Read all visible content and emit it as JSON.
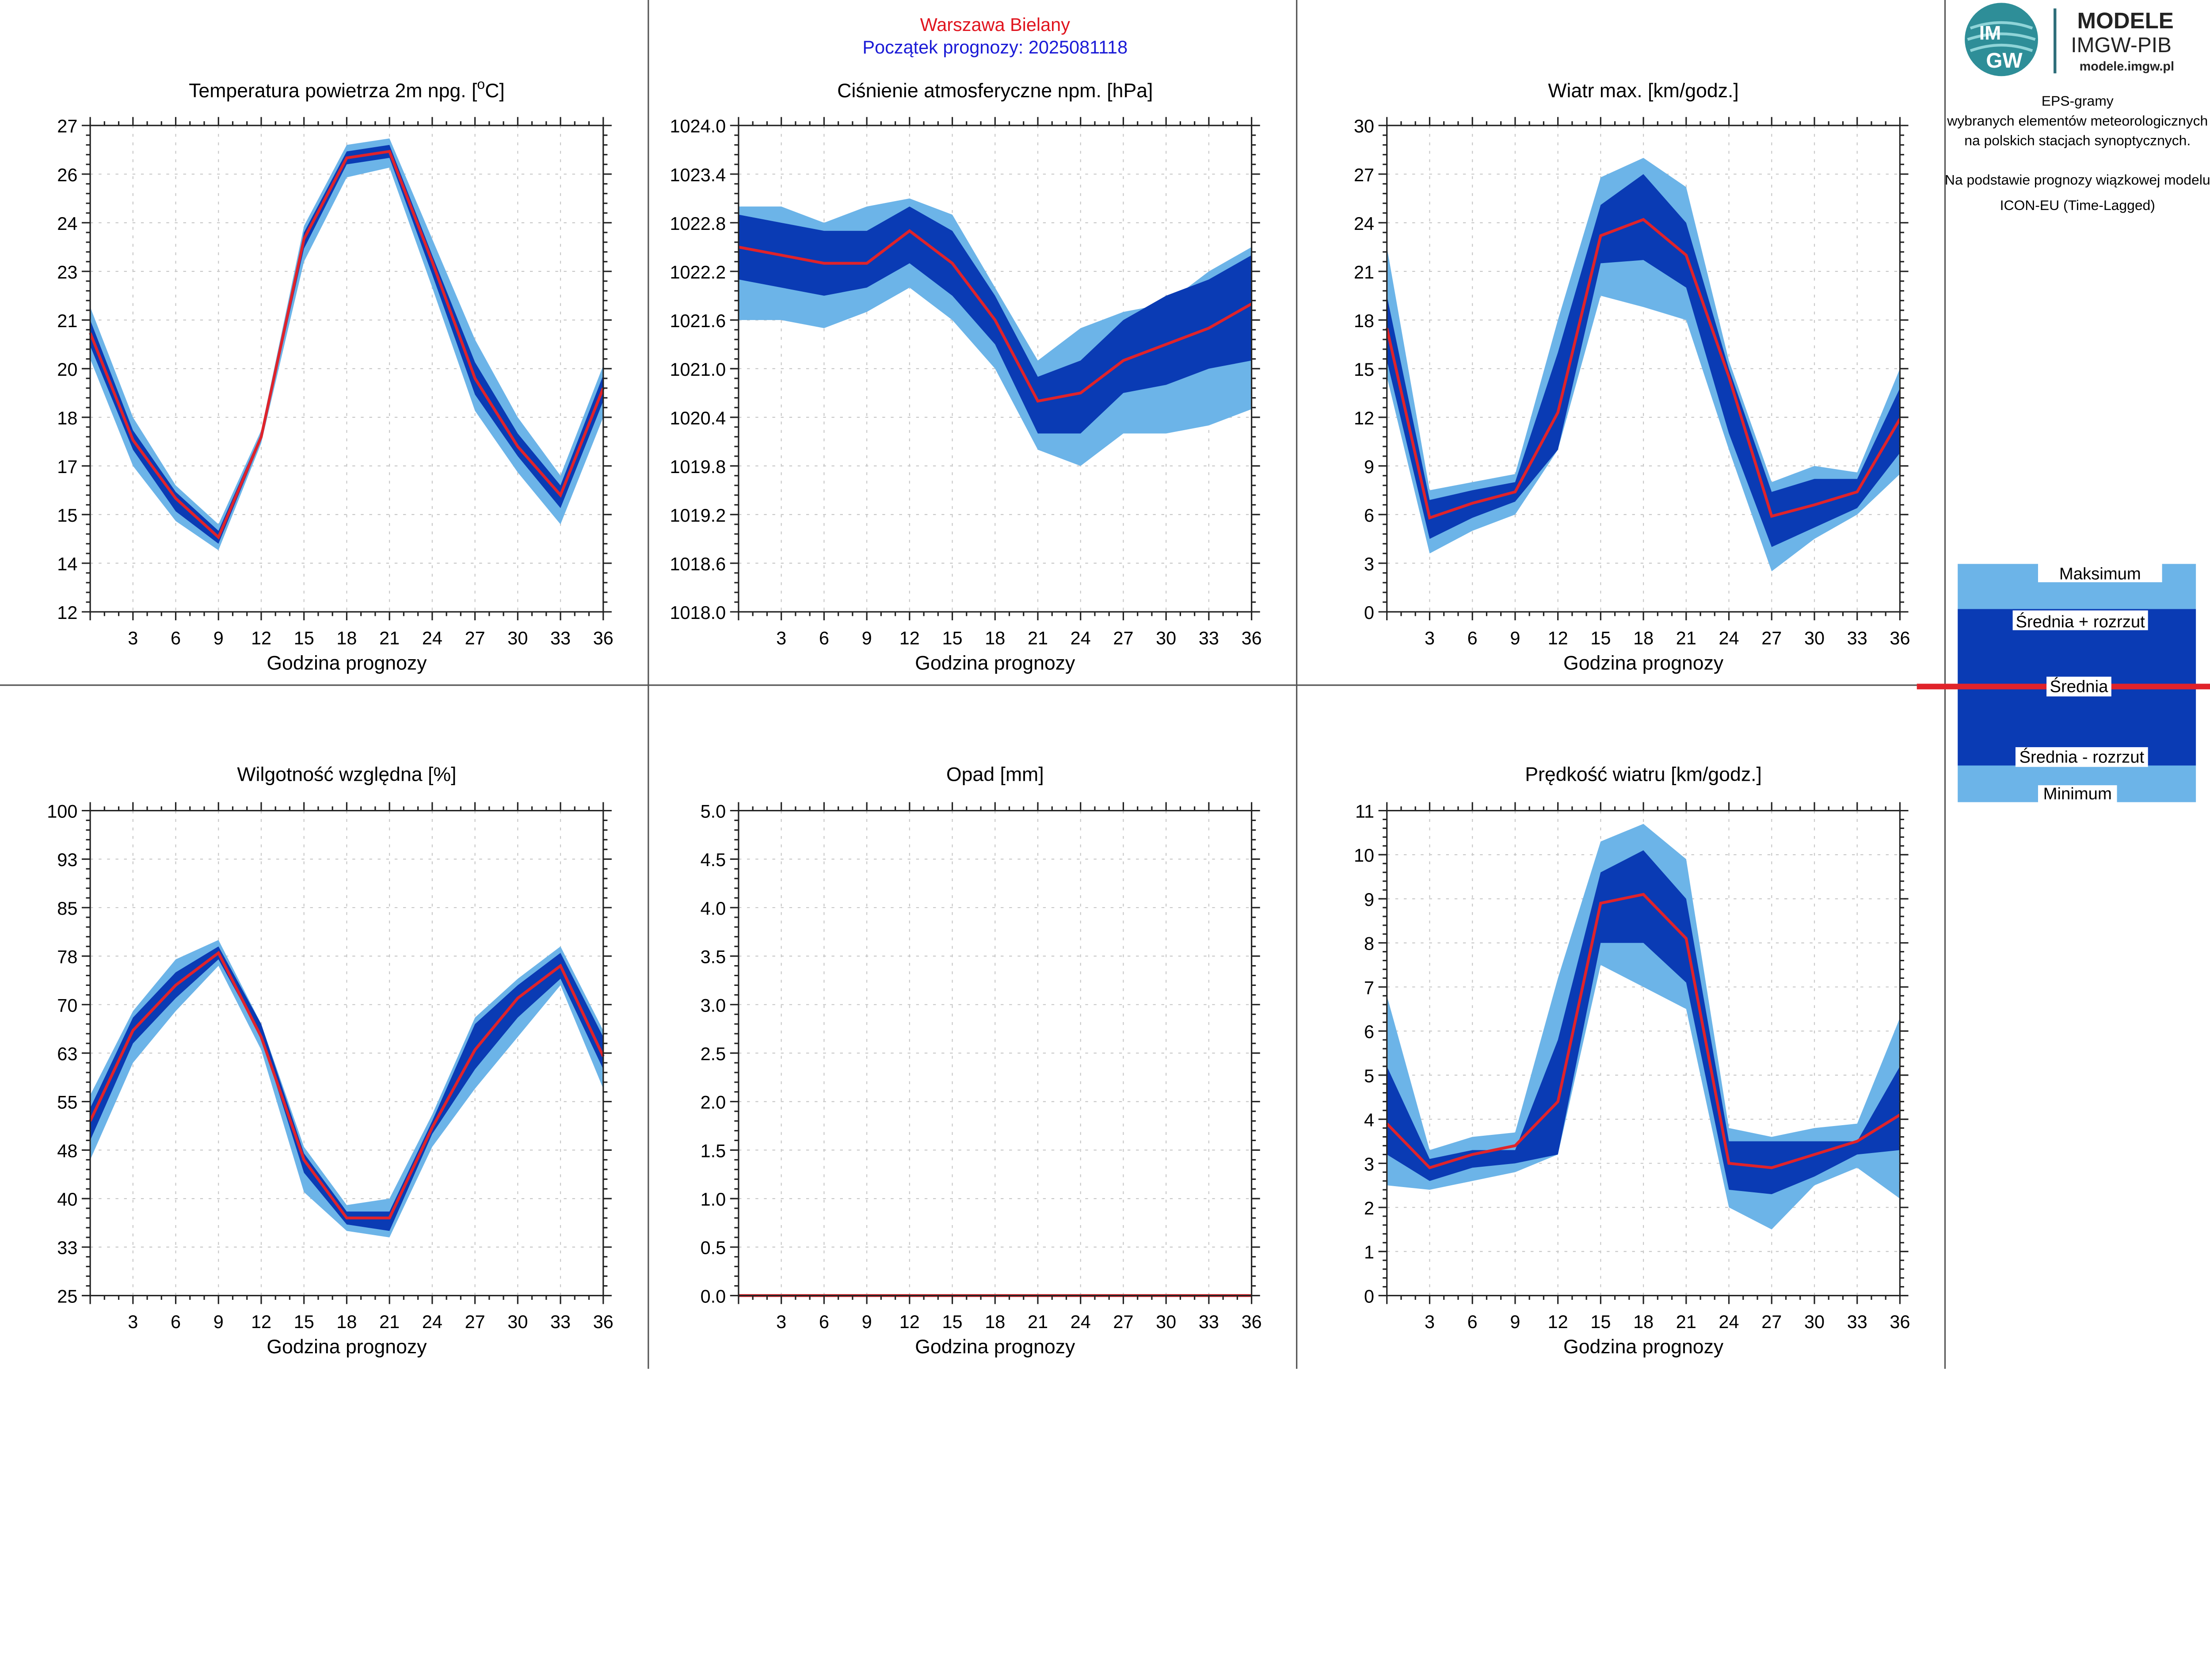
{
  "header": {
    "station": "Warszawa Bielany",
    "station_color": "#e0141e",
    "forecast_start": "Początek prognozy: 2025081118",
    "forecast_start_color": "#1a1ad6"
  },
  "logo": {
    "brand_title": "MODELE",
    "brand_subtitle": "IMGW-PIB",
    "brand_url": "modele.imgw.pl",
    "mark_text_top": "IM",
    "mark_text_bottom": "GW"
  },
  "info": {
    "line1": "EPS-gramy",
    "line2": "wybranych elementów meteorologicznych",
    "line3": "na polskich stacjach  synoptycznych.",
    "line4": "Na podstawie prognozy wiązkowej modelu",
    "line5": "ICON-EU (Time-Lagged)"
  },
  "legend": {
    "max": "Maksimum",
    "mean_plus": "Średnia + rozrzut",
    "mean": "Średnia",
    "mean_minus": "Średnia - rozrzut",
    "min": "Minimum"
  },
  "colors": {
    "minmax_band": "#6cb4e8",
    "spread_band": "#0a3bb4",
    "mean_line": "#e0232a",
    "grid": "#c8c8c8",
    "divider": "#555555"
  },
  "chart_data": [
    {
      "id": "temperature",
      "type": "area",
      "title_main": "Temperatura powietrza 2m npg. [",
      "title_sup": "o",
      "title_end": "C]",
      "xlabel": "Godzina prognozy",
      "x": [
        0,
        3,
        6,
        9,
        12,
        15,
        18,
        21,
        24,
        27,
        30,
        33,
        36
      ],
      "x_ticks": [
        "3",
        "6",
        "9",
        "12",
        "15",
        "18",
        "21",
        "24",
        "27",
        "30",
        "33",
        "36"
      ],
      "ylim": [
        12,
        27
      ],
      "y_ticks": [
        "12",
        "14",
        "15",
        "17",
        "18",
        "20",
        "21",
        "23",
        "24",
        "26",
        "27"
      ],
      "grid": true,
      "series": [
        {
          "name": "Minimum",
          "values": [
            19.8,
            16.5,
            14.8,
            13.9,
            17.2,
            22.8,
            25.4,
            25.7,
            22.0,
            18.2,
            16.3,
            14.7,
            18.0
          ]
        },
        {
          "name": "Średnia - rozrzut",
          "values": [
            20.2,
            17.0,
            15.1,
            14.1,
            17.3,
            23.2,
            25.8,
            26.0,
            22.4,
            18.7,
            16.8,
            15.2,
            18.5
          ]
        },
        {
          "name": "Średnia",
          "values": [
            20.6,
            17.3,
            15.5,
            14.3,
            17.4,
            23.5,
            26.0,
            26.2,
            22.8,
            19.2,
            17.1,
            15.6,
            18.9
          ]
        },
        {
          "name": "Średnia + rozrzut",
          "values": [
            21.0,
            17.6,
            15.7,
            14.5,
            17.5,
            23.7,
            26.2,
            26.4,
            23.0,
            19.7,
            17.5,
            15.9,
            19.3
          ]
        },
        {
          "name": "Maksimum",
          "values": [
            21.4,
            18.0,
            15.9,
            14.7,
            17.6,
            23.9,
            26.4,
            26.6,
            23.5,
            20.4,
            18.0,
            16.2,
            19.6
          ]
        }
      ]
    },
    {
      "id": "pressure",
      "type": "area",
      "title": "Ciśnienie atmosferyczne npm. [hPa]",
      "xlabel": "Godzina prognozy",
      "x": [
        0,
        3,
        6,
        9,
        12,
        15,
        18,
        21,
        24,
        27,
        30,
        33,
        36
      ],
      "x_ticks": [
        "3",
        "6",
        "9",
        "12",
        "15",
        "18",
        "21",
        "24",
        "27",
        "30",
        "33",
        "36"
      ],
      "ylim": [
        1018.0,
        1024.0
      ],
      "y_ticks": [
        "1018.0",
        "1018.6",
        "1019.2",
        "1019.8",
        "1020.4",
        "1021.0",
        "1021.6",
        "1022.2",
        "1022.8",
        "1023.4",
        "1024.0"
      ],
      "grid": true,
      "series": [
        {
          "name": "Minimum",
          "values": [
            1021.6,
            1021.6,
            1021.5,
            1021.7,
            1022.0,
            1021.6,
            1021.0,
            1020.0,
            1019.8,
            1020.2,
            1020.2,
            1020.3,
            1020.5
          ]
        },
        {
          "name": "Średnia - rozrzut",
          "values": [
            1022.1,
            1022.0,
            1021.9,
            1022.0,
            1022.3,
            1021.9,
            1021.3,
            1020.2,
            1020.2,
            1020.7,
            1020.8,
            1021.0,
            1021.1
          ]
        },
        {
          "name": "Średnia",
          "values": [
            1022.5,
            1022.4,
            1022.3,
            1022.3,
            1022.7,
            1022.3,
            1021.6,
            1020.6,
            1020.7,
            1021.1,
            1021.3,
            1021.5,
            1021.8
          ]
        },
        {
          "name": "Średnia + rozrzut",
          "values": [
            1022.9,
            1022.8,
            1022.7,
            1022.7,
            1023.0,
            1022.7,
            1021.9,
            1020.9,
            1021.1,
            1021.6,
            1021.9,
            1022.1,
            1022.4
          ]
        },
        {
          "name": "Maksimum",
          "values": [
            1023.0,
            1023.0,
            1022.8,
            1023.0,
            1023.1,
            1022.9,
            1022.0,
            1021.1,
            1021.5,
            1021.7,
            1021.8,
            1022.2,
            1022.5
          ]
        }
      ]
    },
    {
      "id": "wind_max",
      "type": "area",
      "title": "Wiatr max. [km/godz.]",
      "xlabel": "Godzina prognozy",
      "x": [
        0,
        3,
        6,
        9,
        12,
        15,
        18,
        21,
        24,
        27,
        30,
        33,
        36
      ],
      "x_ticks": [
        "3",
        "6",
        "9",
        "12",
        "15",
        "18",
        "21",
        "24",
        "27",
        "30",
        "33",
        "36"
      ],
      "ylim": [
        0,
        30
      ],
      "y_ticks": [
        "0",
        "3",
        "6",
        "9",
        "12",
        "15",
        "18",
        "21",
        "24",
        "27",
        "30"
      ],
      "grid": true,
      "series": [
        {
          "name": "Minimum",
          "values": [
            14.5,
            3.6,
            5.0,
            6.0,
            10.0,
            19.5,
            18.8,
            18.0,
            10.0,
            2.5,
            4.5,
            6.0,
            8.5
          ]
        },
        {
          "name": "Średnia - rozrzut",
          "values": [
            15.5,
            4.5,
            5.8,
            6.8,
            10.0,
            21.5,
            21.7,
            20.0,
            11.0,
            4.0,
            5.2,
            6.4,
            9.8
          ]
        },
        {
          "name": "Średnia",
          "values": [
            17.5,
            5.8,
            6.7,
            7.4,
            12.3,
            23.2,
            24.2,
            22.0,
            14.5,
            5.9,
            6.6,
            7.4,
            11.9
          ]
        },
        {
          "name": "Średnia + rozrzut",
          "values": [
            19.5,
            6.9,
            7.5,
            8.0,
            16.0,
            25.1,
            27.0,
            24.0,
            15.0,
            7.4,
            8.2,
            8.2,
            13.8
          ]
        },
        {
          "name": "Maksimum",
          "values": [
            22.5,
            7.5,
            8.0,
            8.5,
            18.0,
            26.8,
            28.0,
            26.2,
            15.5,
            8.0,
            9.0,
            8.6,
            15.0
          ]
        }
      ]
    },
    {
      "id": "humidity",
      "type": "area",
      "title": "Wilgotność względna [%]",
      "xlabel": "Godzina prognozy",
      "x": [
        0,
        3,
        6,
        9,
        12,
        15,
        18,
        21,
        24,
        27,
        30,
        33,
        36
      ],
      "x_ticks": [
        "3",
        "6",
        "9",
        "12",
        "15",
        "18",
        "21",
        "24",
        "27",
        "30",
        "33",
        "36"
      ],
      "ylim": [
        25,
        100
      ],
      "y_ticks": [
        "25",
        "33",
        "40",
        "48",
        "55",
        "63",
        "70",
        "78",
        "85",
        "93",
        "100"
      ],
      "grid": true,
      "series": [
        {
          "name": "Minimum",
          "values": [
            46,
            61,
            69,
            76,
            63,
            41,
            35,
            34,
            48,
            57,
            65,
            73,
            57
          ]
        },
        {
          "name": "Średnia - rozrzut",
          "values": [
            49,
            64,
            71,
            77,
            65,
            44,
            36,
            35,
            50,
            60,
            68,
            74,
            60
          ]
        },
        {
          "name": "Średnia",
          "values": [
            52,
            66,
            73,
            78,
            65,
            46,
            37,
            37,
            51,
            63,
            71,
            76,
            62
          ]
        },
        {
          "name": "Średnia + rozrzut",
          "values": [
            54,
            68,
            75,
            79,
            67,
            47,
            38,
            38,
            52,
            67,
            73,
            78,
            65
          ]
        },
        {
          "name": "Maksimum",
          "values": [
            56,
            69,
            77,
            80,
            67,
            48,
            39,
            40,
            53,
            68,
            74,
            79,
            66
          ]
        }
      ]
    },
    {
      "id": "precipitation",
      "type": "line",
      "title": "Opad [mm]",
      "xlabel": "Godzina prognozy",
      "x": [
        0,
        3,
        6,
        9,
        12,
        15,
        18,
        21,
        24,
        27,
        30,
        33,
        36
      ],
      "x_ticks": [
        "3",
        "6",
        "9",
        "12",
        "15",
        "18",
        "21",
        "24",
        "27",
        "30",
        "33",
        "36"
      ],
      "ylim": [
        0.0,
        5.0
      ],
      "y_ticks": [
        "0.0",
        "0.5",
        "1.0",
        "1.5",
        "2.0",
        "2.5",
        "3.0",
        "3.5",
        "4.0",
        "4.5",
        "5.0"
      ],
      "grid": true,
      "series": [
        {
          "name": "Minimum",
          "values": [
            0,
            0,
            0,
            0,
            0,
            0,
            0,
            0,
            0,
            0,
            0,
            0,
            0
          ]
        },
        {
          "name": "Średnia - rozrzut",
          "values": [
            0,
            0,
            0,
            0,
            0,
            0,
            0,
            0,
            0,
            0,
            0,
            0,
            0
          ]
        },
        {
          "name": "Średnia",
          "values": [
            0,
            0,
            0,
            0,
            0,
            0,
            0,
            0,
            0,
            0,
            0,
            0,
            0
          ]
        },
        {
          "name": "Średnia + rozrzut",
          "values": [
            0,
            0,
            0,
            0,
            0,
            0,
            0,
            0,
            0,
            0,
            0,
            0,
            0
          ]
        },
        {
          "name": "Maksimum",
          "values": [
            0,
            0,
            0,
            0,
            0,
            0,
            0,
            0,
            0,
            0,
            0,
            0,
            0
          ]
        }
      ]
    },
    {
      "id": "wind_speed",
      "type": "area",
      "title": "Prędkość wiatru [km/godz.]",
      "xlabel": "Godzina prognozy",
      "x": [
        0,
        3,
        6,
        9,
        12,
        15,
        18,
        21,
        24,
        27,
        30,
        33,
        36
      ],
      "x_ticks": [
        "3",
        "6",
        "9",
        "12",
        "15",
        "18",
        "21",
        "24",
        "27",
        "30",
        "33",
        "36"
      ],
      "ylim": [
        0,
        11
      ],
      "y_ticks": [
        "0",
        "1",
        "2",
        "3",
        "4",
        "5",
        "6",
        "7",
        "8",
        "9",
        "10",
        "11"
      ],
      "grid": true,
      "series": [
        {
          "name": "Minimum",
          "values": [
            2.5,
            2.4,
            2.6,
            2.8,
            3.2,
            7.5,
            7.0,
            6.5,
            2.0,
            1.5,
            2.5,
            2.9,
            2.2
          ]
        },
        {
          "name": "Średnia - rozrzut",
          "values": [
            3.2,
            2.6,
            2.9,
            3.0,
            3.2,
            8.0,
            8.0,
            7.1,
            2.4,
            2.3,
            2.7,
            3.2,
            3.3
          ]
        },
        {
          "name": "Średnia",
          "values": [
            3.9,
            2.9,
            3.2,
            3.4,
            4.4,
            8.9,
            9.1,
            8.1,
            3.0,
            2.9,
            3.2,
            3.5,
            4.1
          ]
        },
        {
          "name": "Średnia + rozrzut",
          "values": [
            5.2,
            3.1,
            3.3,
            3.3,
            5.8,
            9.6,
            10.1,
            9.0,
            3.5,
            3.5,
            3.5,
            3.5,
            5.2
          ]
        },
        {
          "name": "Maksimum",
          "values": [
            6.8,
            3.3,
            3.6,
            3.7,
            7.2,
            10.3,
            10.7,
            9.9,
            3.8,
            3.6,
            3.8,
            3.9,
            6.3
          ]
        }
      ]
    }
  ]
}
